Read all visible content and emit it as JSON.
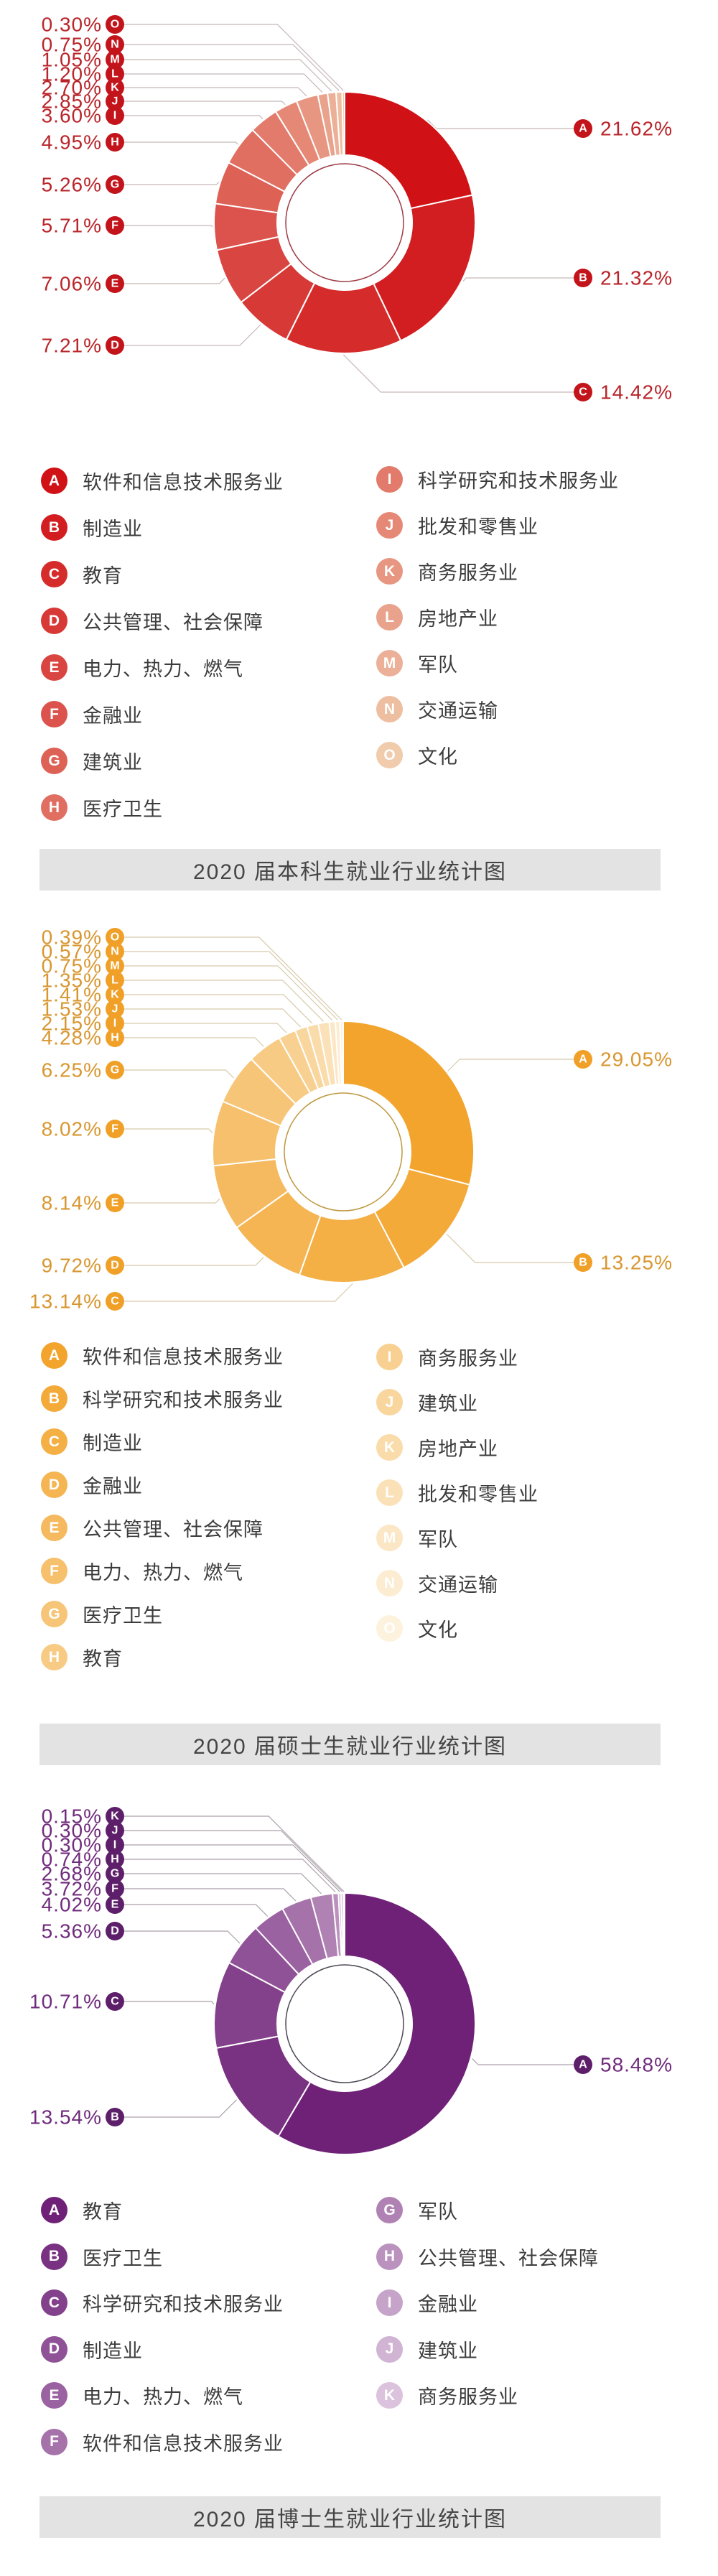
{
  "page": {
    "background": "#ffffff",
    "title_band_bg": "#e3e3e3",
    "title_band_text_color": "#454545",
    "legend_text_color": "#3c3c3c"
  },
  "chart_data": [
    {
      "type": "pie",
      "subtype": "donut",
      "title": "2020 届本科生就业行业统计图",
      "unit": "%",
      "legend_position": "below, two columns",
      "colors": {
        "ramp_start": "#d01116",
        "ramp_end": "#f0cbac",
        "callout_badge": "#c3141b",
        "label_text": "#b9252a",
        "leader_line": "#c7b6b8",
        "inner_ring": "#9e3a45"
      },
      "items": [
        {
          "letter": "A",
          "label": "软件和信息技术服务业",
          "value": 21.62
        },
        {
          "letter": "B",
          "label": "制造业",
          "value": 21.32
        },
        {
          "letter": "C",
          "label": "教育",
          "value": 14.42
        },
        {
          "letter": "D",
          "label": "公共管理、社会保障",
          "value": 7.21
        },
        {
          "letter": "E",
          "label": "电力、热力、燃气",
          "value": 7.06
        },
        {
          "letter": "F",
          "label": "金融业",
          "value": 5.71
        },
        {
          "letter": "G",
          "label": "建筑业",
          "value": 5.26
        },
        {
          "letter": "H",
          "label": "医疗卫生",
          "value": 4.95
        },
        {
          "letter": "I",
          "label": "科学研究和技术服务业",
          "value": 3.6
        },
        {
          "letter": "J",
          "label": "批发和零售业",
          "value": 2.85
        },
        {
          "letter": "K",
          "label": "商务服务业",
          "value": 2.7
        },
        {
          "letter": "L",
          "label": "房地产业",
          "value": 1.2
        },
        {
          "letter": "M",
          "label": "军队",
          "value": 1.05
        },
        {
          "letter": "N",
          "label": "交通运输",
          "value": 0.75
        },
        {
          "letter": "O",
          "label": "文化",
          "value": 0.3
        }
      ]
    },
    {
      "type": "pie",
      "subtype": "donut",
      "title": "2020 届硕士生就业行业统计图",
      "unit": "%",
      "legend_position": "below, two columns",
      "colors": {
        "ramp_start": "#f2a42c",
        "ramp_end": "#fdf2de",
        "callout_badge": "#f0a027",
        "label_text": "#d8962f",
        "leader_line": "#d8cbaa",
        "inner_ring": "#bf973c"
      },
      "items": [
        {
          "letter": "A",
          "label": "软件和信息技术服务业",
          "value": 29.05
        },
        {
          "letter": "B",
          "label": "科学研究和技术服务业",
          "value": 13.25
        },
        {
          "letter": "C",
          "label": "制造业",
          "value": 13.14
        },
        {
          "letter": "D",
          "label": "金融业",
          "value": 9.72
        },
        {
          "letter": "E",
          "label": "公共管理、社会保障",
          "value": 8.14
        },
        {
          "letter": "F",
          "label": "电力、热力、燃气",
          "value": 8.02
        },
        {
          "letter": "G",
          "label": "医疗卫生",
          "value": 6.25
        },
        {
          "letter": "H",
          "label": "教育",
          "value": 4.28
        },
        {
          "letter": "I",
          "label": "商务服务业",
          "value": 2.15
        },
        {
          "letter": "J",
          "label": "建筑业",
          "value": 1.53
        },
        {
          "letter": "K",
          "label": "房地产业",
          "value": 1.41
        },
        {
          "letter": "L",
          "label": "批发和零售业",
          "value": 1.35
        },
        {
          "letter": "M",
          "label": "军队",
          "value": 0.75
        },
        {
          "letter": "N",
          "label": "交通运输",
          "value": 0.57
        },
        {
          "letter": "O",
          "label": "文化",
          "value": 0.39
        }
      ]
    },
    {
      "type": "pie",
      "subtype": "donut",
      "title": "2020 届博士生就业行业统计图",
      "unit": "%",
      "legend_position": "below, two columns",
      "colors": {
        "ramp_start": "#6e2177",
        "ramp_end": "#dcc3dd",
        "callout_badge": "#5e1f6a",
        "label_text": "#702b7c",
        "leader_line": "#aaa1aa",
        "inner_ring": "#4e4753"
      },
      "items": [
        {
          "letter": "A",
          "label": "教育",
          "value": 58.48
        },
        {
          "letter": "B",
          "label": "医疗卫生",
          "value": 13.54
        },
        {
          "letter": "C",
          "label": "科学研究和技术服务业",
          "value": 10.71
        },
        {
          "letter": "D",
          "label": "制造业",
          "value": 5.36
        },
        {
          "letter": "E",
          "label": "电力、热力、燃气",
          "value": 4.02
        },
        {
          "letter": "F",
          "label": "软件和信息技术服务业",
          "value": 3.72
        },
        {
          "letter": "G",
          "label": "军队",
          "value": 2.68
        },
        {
          "letter": "H",
          "label": "公共管理、社会保障",
          "value": 0.74
        },
        {
          "letter": "I",
          "label": "金融业",
          "value": 0.3
        },
        {
          "letter": "J",
          "label": "建筑业",
          "value": 0.3
        },
        {
          "letter": "K",
          "label": "商务服务业",
          "value": 0.15
        }
      ]
    }
  ]
}
